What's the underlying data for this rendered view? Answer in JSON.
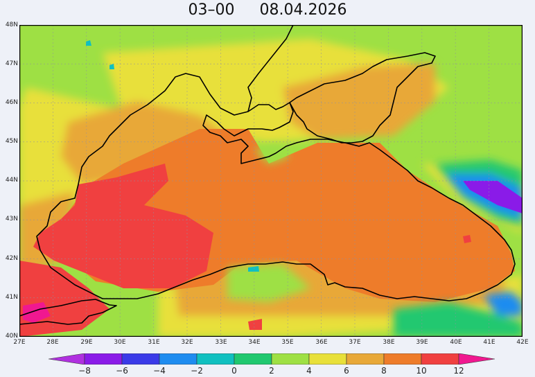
{
  "header": {
    "time": "03–00",
    "date": "08.04.2026"
  },
  "map": {
    "lat_labels": [
      "48N",
      "47N",
      "46N",
      "45N",
      "44N",
      "43N",
      "42N",
      "41N",
      "40N"
    ],
    "lon_labels": [
      "27E",
      "28E",
      "29E",
      "30E",
      "31E",
      "32E",
      "33E",
      "34E",
      "35E",
      "36E",
      "37E",
      "38E",
      "39E",
      "40E",
      "41E",
      "42E"
    ],
    "lat_range": [
      40,
      48
    ],
    "lon_range": [
      27,
      42
    ],
    "grid": true
  },
  "legend": {
    "ticks": [
      "−8",
      "−6",
      "−4",
      "−2",
      "0",
      "2",
      "4",
      "6",
      "8",
      "10",
      "12"
    ],
    "colors": [
      "#b030e0",
      "#8a1be8",
      "#3a3ae8",
      "#1e8cf0",
      "#10c0c0",
      "#20c870",
      "#9ee044",
      "#e8e03a",
      "#e8a838",
      "#ee7c2a",
      "#f04040",
      "#f01890"
    ]
  }
}
